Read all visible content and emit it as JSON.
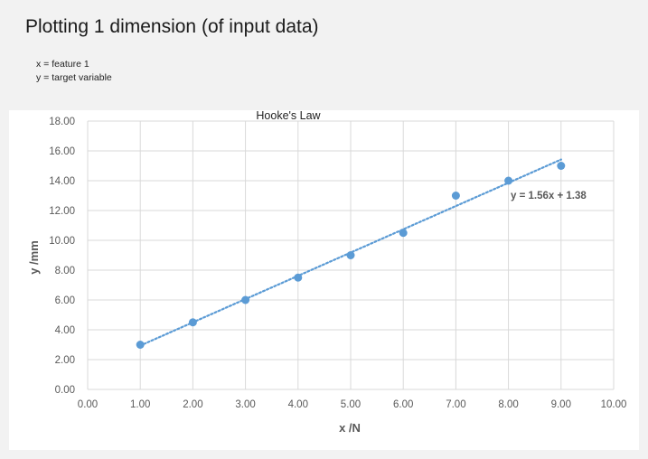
{
  "slide": {
    "title": "Plotting 1 dimension (of input data)",
    "notes": [
      "x = feature 1",
      "y = target variable"
    ]
  },
  "colors": {
    "marker": "#5b9bd5",
    "trendline": "#5b9bd5",
    "grid": "#d9d9d9",
    "background": "#f2f2f2"
  },
  "chart_data": {
    "type": "scatter",
    "title": "Hooke's Law",
    "xlabel": "x /N",
    "ylabel": "y /mm",
    "xlim": [
      0,
      10
    ],
    "ylim": [
      0,
      18
    ],
    "x_ticks": [
      "0.00",
      "1.00",
      "2.00",
      "3.00",
      "4.00",
      "5.00",
      "6.00",
      "7.00",
      "8.00",
      "9.00",
      "10.00"
    ],
    "y_ticks": [
      "0.00",
      "2.00",
      "4.00",
      "6.00",
      "8.00",
      "10.00",
      "12.00",
      "14.00",
      "16.00",
      "18.00"
    ],
    "grid": true,
    "series": [
      {
        "x": [
          1,
          2,
          3,
          4,
          5,
          6,
          7,
          8,
          9
        ],
        "y": [
          3.0,
          4.5,
          6.0,
          7.5,
          9.0,
          10.5,
          13.0,
          14.0,
          15.0
        ]
      }
    ],
    "trendline": {
      "type": "linear",
      "slope": 1.56,
      "intercept": 1.38,
      "x_range": [
        1,
        9
      ],
      "style": "dotted",
      "equation_label": "y = 1.56x + 1.38"
    }
  }
}
